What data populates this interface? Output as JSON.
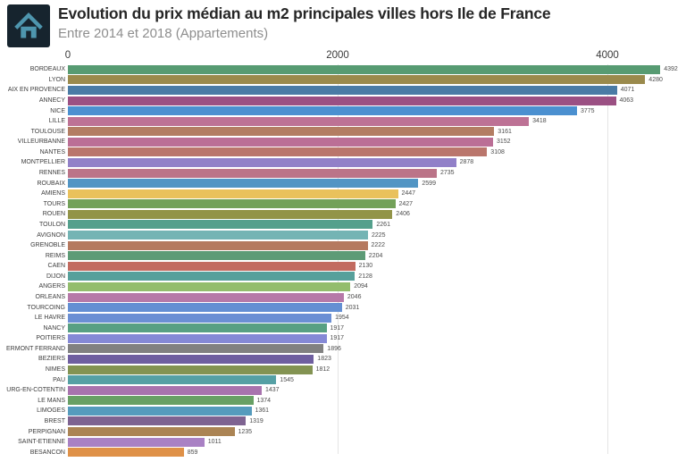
{
  "header": {
    "title": "Evolution du prix médian au m2 principales villes hors Ile de France",
    "subtitle": "Entre 2014 et 2018 (Appartements)",
    "logo_icon": "home-icon",
    "logo_bg_color": "#16242e",
    "logo_glyph_color": "#4e96ae"
  },
  "chart_data": {
    "type": "bar",
    "orientation": "horizontal",
    "title": "Evolution du prix médian au m2 principales villes hors Ile de France",
    "subtitle": "Entre 2014 et 2018 (Appartements)",
    "xlabel": "",
    "ylabel": "",
    "x_ticks": [
      0,
      2000,
      4000
    ],
    "xlim": [
      0,
      4580
    ],
    "grid": "vertical-light",
    "legend": "none",
    "categories": [
      "BORDEAUX",
      "LYON",
      "AIX EN PROVENCE",
      "ANNECY",
      "NICE",
      "LILLE",
      "TOULOUSE",
      "VILLEURBANNE",
      "NANTES",
      "MONTPELLIER",
      "RENNES",
      "ROUBAIX",
      "AMIENS",
      "TOURS",
      "ROUEN",
      "TOULON",
      "AVIGNON",
      "GRENOBLE",
      "REIMS",
      "CAEN",
      "DIJON",
      "ANGERS",
      "ORLEANS",
      "TOURCOING",
      "LE HAVRE",
      "NANCY",
      "POITIERS",
      "ERMONT FERRAND",
      "BEZIERS",
      "NIMES",
      "PAU",
      "URG-EN-COTENTIN",
      "LE MANS",
      "LIMOGES",
      "BREST",
      "PERPIGNAN",
      "SAINT-ETIENNE",
      "BESANCON"
    ],
    "values": [
      4392,
      4280,
      4071,
      4063,
      3775,
      3418,
      3161,
      3152,
      3108,
      2878,
      2735,
      2599,
      2447,
      2427,
      2406,
      2261,
      2225,
      2222,
      2204,
      2130,
      2128,
      2094,
      2046,
      2031,
      1954,
      1917,
      1917,
      1896,
      1823,
      1812,
      1545,
      1437,
      1374,
      1361,
      1319,
      1235,
      1011,
      859
    ],
    "colors": [
      "#579b72",
      "#9a8a4c",
      "#4a7ba5",
      "#9b5083",
      "#4b90d0",
      "#bd7295",
      "#b37d63",
      "#bb6f96",
      "#ba766c",
      "#9180c8",
      "#bb7488",
      "#5295c4",
      "#e9c15c",
      "#73a159",
      "#929448",
      "#54a08c",
      "#74b4b4",
      "#b5795f",
      "#5d9b76",
      "#c26b60",
      "#57a09b",
      "#93bd6d",
      "#b679a8",
      "#648fd3",
      "#6b8fd4",
      "#58a083",
      "#8589d6",
      "#818181",
      "#6f5fa0",
      "#839352",
      "#55a0a4",
      "#a873ae",
      "#68a065",
      "#559bbd",
      "#7e6391",
      "#ab8454",
      "#a981c4",
      "#df9148"
    ]
  }
}
